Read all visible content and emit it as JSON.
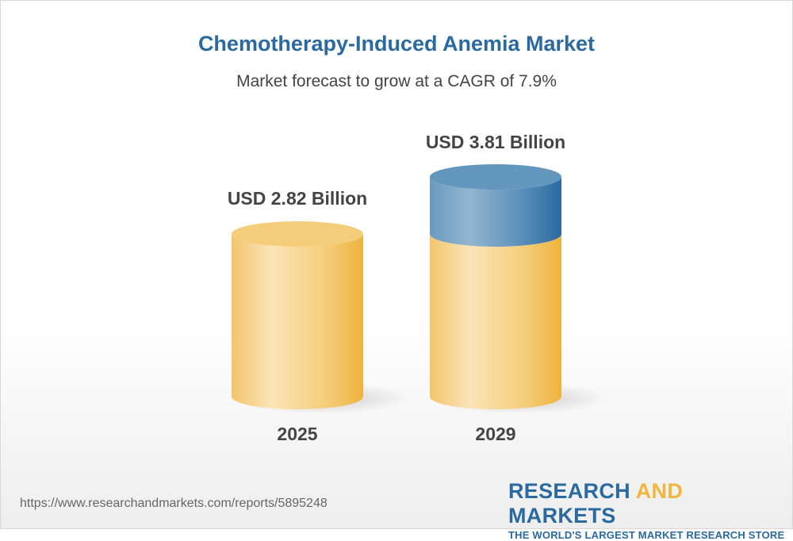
{
  "chart_data": {
    "type": "bar",
    "style": "3d-cylinder",
    "title": "Chemotherapy-Induced Anemia Market",
    "subtitle": "Market forecast to grow at a CAGR of 7.9%",
    "categories": [
      "2025",
      "2029"
    ],
    "values": [
      2.82,
      3.81
    ],
    "data_labels": [
      "USD 2.82 Billion",
      "USD 3.81 Billion"
    ],
    "unit": "USD Billion",
    "colors": {
      "base": "#f2c063",
      "growth": "#2a6aa0"
    }
  },
  "footer": {
    "url": "https://www.researchandmarkets.com/reports/5895248",
    "logo_part1": "RESEARCH ",
    "logo_part2": "AND",
    "logo_part3": " MARKETS",
    "tagline": "THE WORLD'S LARGEST MARKET RESEARCH STORE"
  }
}
